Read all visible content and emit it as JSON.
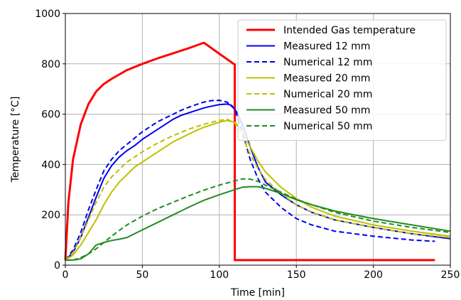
{
  "chart_data": {
    "type": "line",
    "xlabel": "Time [min]",
    "ylabel": "Temperature [°C]",
    "xlim": [
      0,
      250
    ],
    "ylim": [
      0,
      1000
    ],
    "xticks": [
      0,
      50,
      100,
      150,
      200,
      250
    ],
    "yticks": [
      0,
      200,
      400,
      600,
      800,
      1000
    ],
    "grid": true,
    "legend_position": "top-right",
    "series": [
      {
        "name": "Intended Gas temperature",
        "color": "#ff0000",
        "style": "solid",
        "width": 3,
        "x": [
          0,
          2,
          5,
          10,
          15,
          20,
          25,
          30,
          40,
          50,
          60,
          70,
          80,
          90,
          100,
          110,
          110,
          150,
          200,
          240
        ],
        "y": [
          20,
          250,
          420,
          560,
          640,
          690,
          720,
          740,
          775,
          800,
          822,
          842,
          862,
          884,
          840,
          797,
          20,
          20,
          20,
          20
        ]
      },
      {
        "name": "Measured 12 mm",
        "color": "#0000ee",
        "style": "solid",
        "width": 2,
        "x": [
          0,
          5,
          10,
          15,
          20,
          25,
          30,
          35,
          40,
          45,
          50,
          55,
          60,
          65,
          70,
          75,
          80,
          85,
          90,
          95,
          100,
          105,
          108,
          110,
          112,
          115,
          120,
          125,
          130,
          140,
          150,
          160,
          175,
          200,
          225,
          250
        ],
        "y": [
          20,
          50,
          110,
          190,
          270,
          345,
          395,
          430,
          455,
          475,
          500,
          520,
          540,
          560,
          580,
          595,
          605,
          615,
          625,
          632,
          638,
          640,
          635,
          620,
          600,
          560,
          470,
          390,
          330,
          280,
          240,
          210,
          180,
          150,
          125,
          105
        ]
      },
      {
        "name": "Numerical 12 mm",
        "color": "#0000ee",
        "style": "dashed",
        "width": 2,
        "x": [
          0,
          5,
          10,
          15,
          20,
          25,
          30,
          35,
          40,
          45,
          50,
          55,
          60,
          65,
          70,
          75,
          80,
          85,
          90,
          95,
          100,
          105,
          110,
          115,
          120,
          125,
          130,
          140,
          150,
          160,
          175,
          200,
          225,
          240
        ],
        "y": [
          20,
          60,
          130,
          220,
          300,
          375,
          420,
          455,
          480,
          505,
          530,
          550,
          570,
          585,
          600,
          615,
          627,
          638,
          648,
          654,
          655,
          648,
          620,
          530,
          420,
          345,
          290,
          230,
          185,
          160,
          135,
          115,
          100,
          95
        ]
      },
      {
        "name": "Measured 20 mm",
        "color": "#bfbf00",
        "style": "solid",
        "width": 2,
        "x": [
          0,
          5,
          10,
          15,
          20,
          25,
          30,
          35,
          40,
          45,
          50,
          55,
          60,
          65,
          70,
          75,
          80,
          85,
          90,
          95,
          100,
          105,
          110,
          115,
          120,
          125,
          130,
          140,
          150,
          160,
          175,
          200,
          225,
          250
        ],
        "y": [
          20,
          40,
          80,
          130,
          180,
          240,
          290,
          330,
          360,
          390,
          410,
          430,
          450,
          470,
          490,
          505,
          520,
          535,
          548,
          558,
          568,
          575,
          568,
          530,
          470,
          415,
          370,
          310,
          265,
          230,
          195,
          160,
          135,
          115
        ]
      },
      {
        "name": "Numerical 20 mm",
        "color": "#bfbf00",
        "style": "dashed",
        "width": 2,
        "x": [
          0,
          5,
          10,
          15,
          20,
          25,
          30,
          35,
          40,
          45,
          50,
          55,
          60,
          65,
          70,
          75,
          80,
          85,
          90,
          95,
          100,
          105,
          110,
          115,
          120,
          125,
          130,
          140,
          150,
          160,
          175,
          200,
          225,
          250
        ],
        "y": [
          20,
          50,
          110,
          180,
          250,
          310,
          350,
          380,
          410,
          430,
          450,
          468,
          485,
          500,
          515,
          527,
          540,
          550,
          560,
          568,
          575,
          580,
          565,
          510,
          440,
          385,
          340,
          285,
          240,
          210,
          180,
          150,
          125,
          110
        ]
      },
      {
        "name": "Measured 50 mm",
        "color": "#228b22",
        "style": "solid",
        "width": 2,
        "x": [
          0,
          5,
          10,
          15,
          20,
          25,
          30,
          35,
          40,
          50,
          60,
          70,
          80,
          90,
          100,
          110,
          115,
          120,
          125,
          130,
          140,
          150,
          160,
          175,
          200,
          225,
          250
        ],
        "y": [
          20,
          20,
          25,
          45,
          80,
          90,
          98,
          103,
          110,
          140,
          170,
          200,
          230,
          258,
          280,
          300,
          310,
          312,
          312,
          305,
          285,
          260,
          240,
          215,
          185,
          160,
          135
        ]
      },
      {
        "name": "Numerical 50 mm",
        "color": "#228b22",
        "style": "dashed",
        "width": 2,
        "x": [
          0,
          5,
          10,
          15,
          20,
          25,
          30,
          40,
          50,
          60,
          70,
          80,
          90,
          100,
          110,
          115,
          120,
          125,
          130,
          140,
          150,
          160,
          175,
          200,
          225,
          250
        ],
        "y": [
          20,
          20,
          30,
          45,
          65,
          90,
          115,
          160,
          195,
          225,
          250,
          275,
          298,
          318,
          335,
          343,
          342,
          333,
          318,
          290,
          262,
          240,
          210,
          175,
          150,
          130
        ]
      }
    ]
  }
}
